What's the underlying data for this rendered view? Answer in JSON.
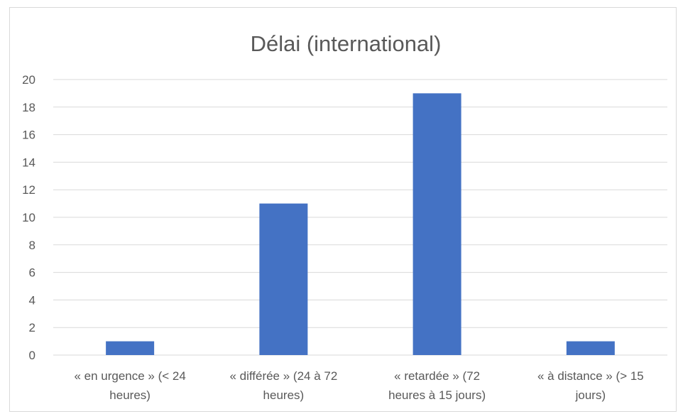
{
  "chart_data": {
    "type": "bar",
    "title": "Délai (international)",
    "xlabel": "",
    "ylabel": "",
    "categories": [
      [
        "« en urgence » (< 24",
        "heures)"
      ],
      [
        "« différée » (24 à 72",
        "heures)"
      ],
      [
        "« retardée » (72",
        "heures à 15 jours)"
      ],
      [
        "« à distance » (> 15",
        "jours)"
      ]
    ],
    "values": [
      1,
      11,
      19,
      1
    ],
    "ylim": [
      0,
      20
    ],
    "yticks": [
      0,
      2,
      4,
      6,
      8,
      10,
      12,
      14,
      16,
      18,
      20
    ],
    "grid": true,
    "bar_color": "#4472c4"
  }
}
